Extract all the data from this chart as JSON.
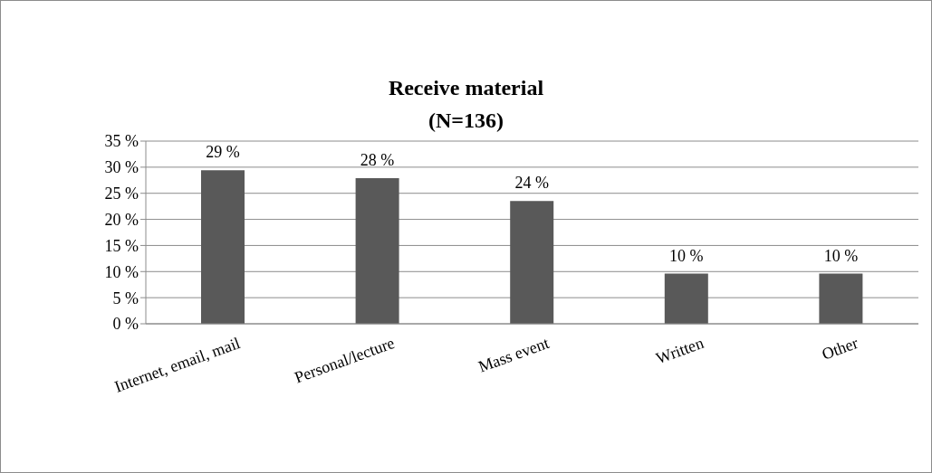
{
  "chart_data": {
    "type": "bar",
    "title": "Receive material",
    "subtitle": "(N=136)",
    "categories": [
      "Internet, email, mail",
      "Personal/lecture",
      "Mass event",
      "Written",
      "Other"
    ],
    "values": [
      29.4,
      27.9,
      23.5,
      9.6,
      9.6
    ],
    "value_labels": [
      "29 %",
      "28 %",
      "24 %",
      "10 %",
      "10 %"
    ],
    "color": "#595959",
    "ylim": [
      0,
      35
    ],
    "yticks": [
      {
        "value": 0,
        "label": "0 %"
      },
      {
        "value": 5,
        "label": "5 %"
      },
      {
        "value": 10,
        "label": "10 %"
      },
      {
        "value": 15,
        "label": "15 %"
      },
      {
        "value": 20,
        "label": "20 %"
      },
      {
        "value": 25,
        "label": "25 %"
      },
      {
        "value": 30,
        "label": "30 %"
      },
      {
        "value": 35,
        "label": "35 %"
      }
    ],
    "grid": "y",
    "legend": false
  }
}
